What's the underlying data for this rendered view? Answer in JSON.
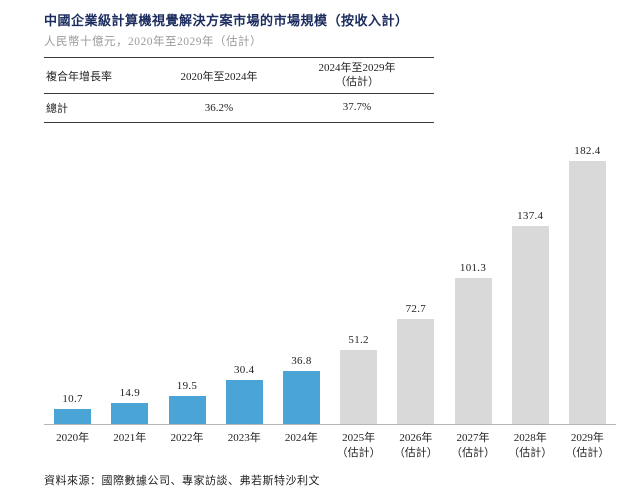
{
  "header": {
    "title": "中國企業級計算機視覺解決方案市場的市場規模（按收入計）",
    "subtitle": "人民幣十億元，2020年至2029年（估計）"
  },
  "cagr_table": {
    "metric_header": "複合年增長率",
    "period1_header": "2020年至2024年",
    "period2_header_line1": "2024年至2029年",
    "period2_header_line2": "（估計）",
    "row_label": "總計",
    "period1_value": "36.2%",
    "period2_value": "37.7%"
  },
  "chart_data": {
    "type": "bar",
    "title": "中國企業級計算機視覺解決方案市場的市場規模（按收入計）",
    "unit_label": "人民幣十億元",
    "categories": [
      "2020年",
      "2021年",
      "2022年",
      "2023年",
      "2024年",
      "2025年（估計）",
      "2026年（估計）",
      "2027年（估計）",
      "2028年（估計）",
      "2029年（估計）"
    ],
    "values": [
      10.7,
      14.9,
      19.5,
      30.4,
      36.8,
      51.2,
      72.7,
      101.3,
      137.4,
      182.4
    ],
    "actual_series_count": 5,
    "actual_color": "#4BA4D6",
    "estimate_color": "#D9D9D9",
    "ylim": [
      0,
      200
    ],
    "grid": false,
    "legend": "none"
  },
  "footer": {
    "source": "資料來源：國際數據公司、專家訪談、弗若斯特沙利文"
  }
}
